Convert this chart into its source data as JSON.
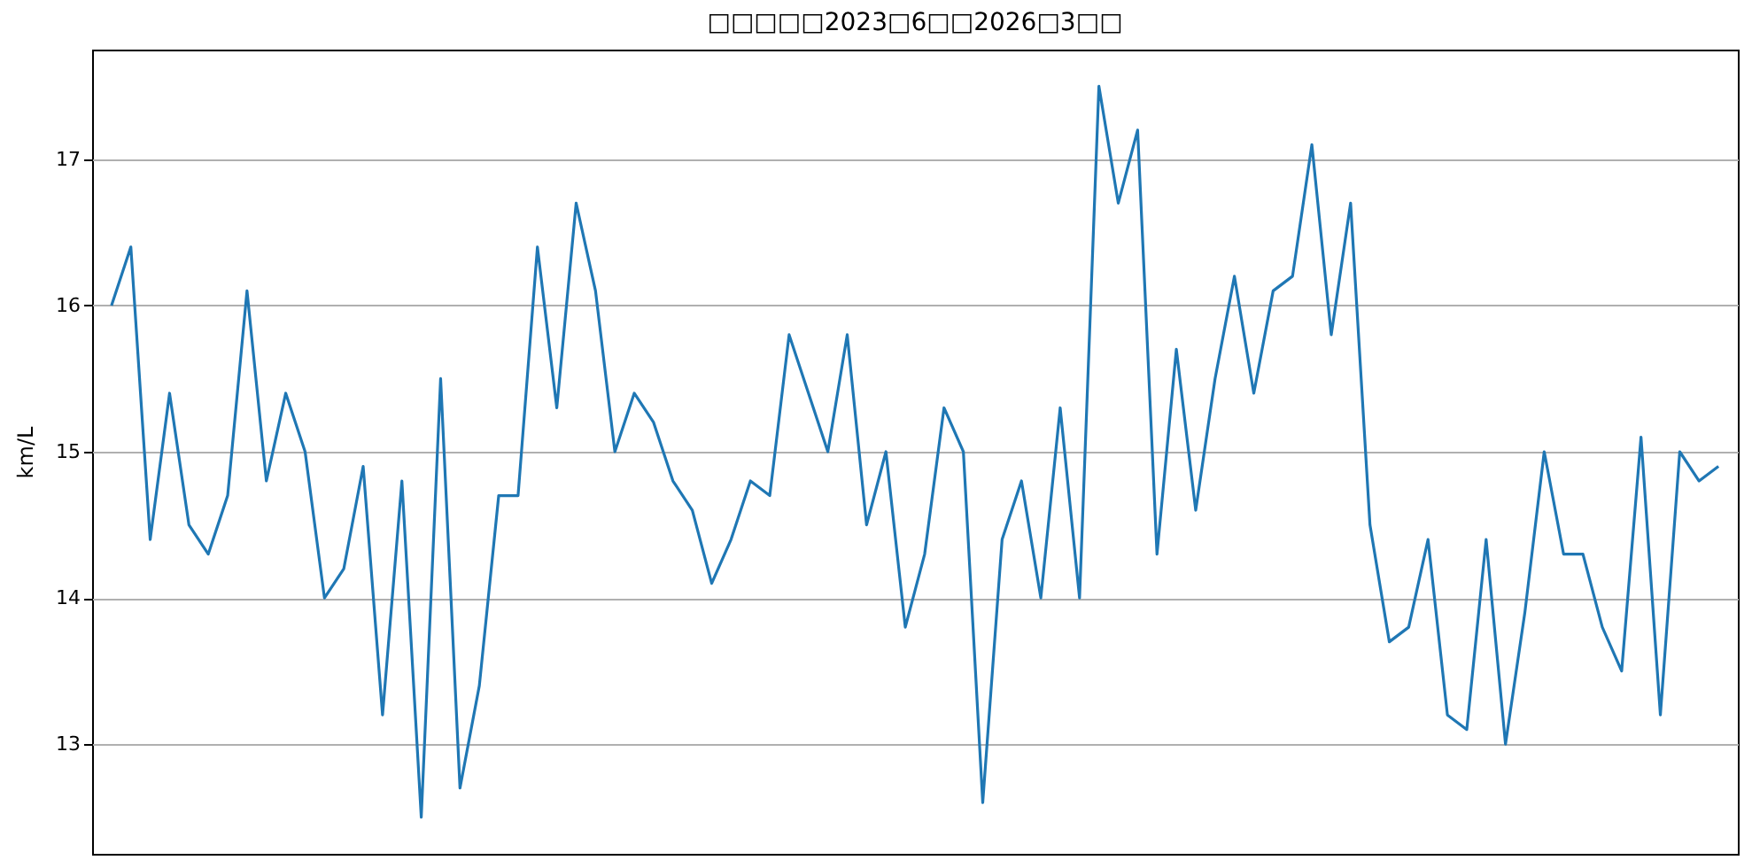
{
  "chart_data": {
    "type": "line",
    "title": "□□□□□2023□6□□2026□3□□",
    "ylabel": "km/L",
    "categories": [
      null,
      null,
      null,
      null,
      null,
      null,
      null,
      null,
      null,
      null,
      null,
      null,
      null,
      null,
      null,
      null,
      null,
      null,
      null,
      null,
      null,
      null,
      null,
      null,
      null,
      null,
      null,
      null,
      null,
      null,
      null,
      null,
      null,
      null,
      null,
      null,
      null,
      null,
      null,
      null,
      null,
      null,
      null,
      null,
      null,
      null,
      null,
      null,
      null,
      null,
      null,
      null,
      null,
      null,
      null,
      null,
      null,
      null,
      null,
      null,
      null,
      null,
      null,
      null,
      null,
      null,
      null,
      null,
      null,
      null,
      null,
      null,
      null,
      null,
      null,
      null,
      null,
      null,
      null,
      null,
      null,
      null,
      null,
      null
    ],
    "series": [
      {
        "color": "#1f77b4",
        "values": [
          16.0,
          16.4,
          14.4,
          15.4,
          14.5,
          14.3,
          14.7,
          16.1,
          14.8,
          15.4,
          15.0,
          14.0,
          14.2,
          14.9,
          13.2,
          14.8,
          12.5,
          15.5,
          12.7,
          13.4,
          14.7,
          14.7,
          16.4,
          15.3,
          16.7,
          16.1,
          15.0,
          15.4,
          15.2,
          14.8,
          14.6,
          14.1,
          14.4,
          14.8,
          14.7,
          15.8,
          15.4,
          15.0,
          15.8,
          14.5,
          15.0,
          13.8,
          14.3,
          15.3,
          15.0,
          12.6,
          14.4,
          14.8,
          14.0,
          15.3,
          14.0,
          17.5,
          16.7,
          17.2,
          14.3,
          15.7,
          14.6,
          15.5,
          16.2,
          15.4,
          16.1,
          16.2,
          17.1,
          15.8,
          16.7,
          14.5,
          13.7,
          13.8,
          14.4,
          13.2,
          13.1,
          14.4,
          13.0,
          13.9,
          15.0,
          14.3,
          14.3,
          13.8,
          13.5,
          15.1,
          13.2,
          15.0,
          14.8,
          14.9
        ]
      }
    ],
    "ylim": [
      12.25,
      17.75
    ],
    "yticks": [
      13,
      14,
      15,
      16,
      17
    ],
    "grid": "y",
    "tick_labels": "y"
  }
}
